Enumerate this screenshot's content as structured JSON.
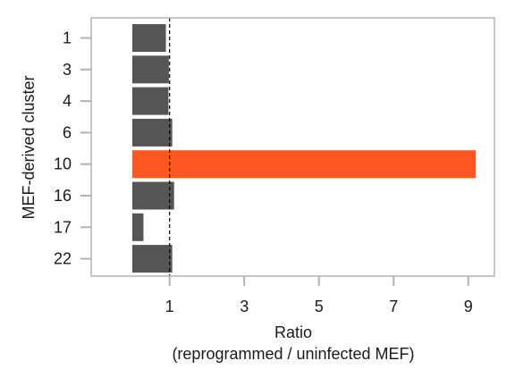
{
  "chart_data": {
    "type": "bar",
    "orientation": "horizontal",
    "categories": [
      "1",
      "3",
      "4",
      "6",
      "10",
      "16",
      "17",
      "22"
    ],
    "values": [
      0.9,
      0.98,
      0.97,
      1.07,
      9.2,
      1.12,
      0.3,
      1.07
    ],
    "xlim": [
      -1.1,
      9.7
    ],
    "xticks": [
      1,
      3,
      5,
      7,
      9
    ],
    "xtick_labels": [
      "1",
      "3",
      "5",
      "7",
      "9"
    ],
    "reference_line": 1,
    "xlabel_line1": "Ratio",
    "xlabel_line2": "(reprogrammed / uninfected MEF)",
    "ylabel": "MEF-derived cluster",
    "highlight_category": "10",
    "colors": {
      "bar": "#555555",
      "highlight": "#ff5722",
      "frame": "#b3b3b3",
      "reference": "#000000"
    },
    "grid": false,
    "legend": "none"
  }
}
